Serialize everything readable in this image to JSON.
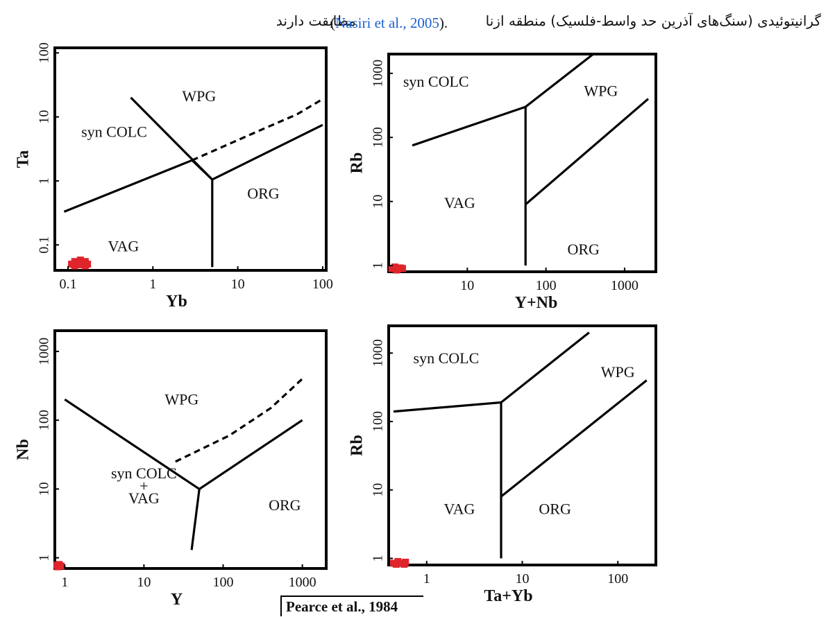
{
  "caption": {
    "right_text": "گرانیتوئیدی (سنگ‌های آذرین حد واسط-فلسیک) منطقه ازنا",
    "left_text": "مطابقت دارند",
    "citation_open": "(",
    "citation_link": "Nasiri et al., 2005",
    "citation_close": ")."
  },
  "reference": "Pearce et al., 1984",
  "chart_data": [
    {
      "type": "scatter",
      "xlabel": "Yb",
      "ylabel": "Ta",
      "log_x": true,
      "log_y": true,
      "xlim": [
        0.07,
        110
      ],
      "ylim": [
        0.04,
        120
      ],
      "x_ticks": [
        {
          "v": 0.1,
          "label": "0.1"
        },
        {
          "v": 1,
          "label": "1"
        },
        {
          "v": 10,
          "label": "10"
        },
        {
          "v": 100,
          "label": "100"
        }
      ],
      "y_ticks": [
        {
          "v": 0.1,
          "label": "0.1"
        },
        {
          "v": 1,
          "label": "1"
        },
        {
          "v": 10,
          "label": "10"
        },
        {
          "v": 100,
          "label": "100"
        }
      ],
      "y_tick_rotated": true,
      "regions": [
        {
          "label": "WPG",
          "x": 3.5,
          "y": 20
        },
        {
          "label": "syn COLC",
          "x": 0.35,
          "y": 5.5
        },
        {
          "label": "ORG",
          "x": 20,
          "y": 0.6
        },
        {
          "label": "VAG",
          "x": 0.45,
          "y": 0.09
        }
      ],
      "boundaries": [
        {
          "style": "solid",
          "points": [
            [
              0.09,
              0.33
            ],
            [
              2.9,
              2.1
            ],
            [
              5,
              1.05
            ],
            [
              100,
              7.5
            ]
          ]
        },
        {
          "style": "solid",
          "points": [
            [
              0.55,
              20
            ],
            [
              5,
              1.05
            ]
          ]
        },
        {
          "style": "solid",
          "points": [
            [
              5,
              1.05
            ],
            [
              5,
              0.045
            ]
          ]
        },
        {
          "style": "dashed",
          "points": [
            [
              2.9,
              2.1
            ],
            [
              15,
              5.5
            ],
            [
              50,
              11
            ],
            [
              100,
              19
            ]
          ]
        }
      ],
      "points": [
        [
          0.11,
          0.05
        ],
        [
          0.12,
          0.055
        ],
        [
          0.13,
          0.05
        ],
        [
          0.14,
          0.058
        ],
        [
          0.15,
          0.052
        ],
        [
          0.16,
          0.055
        ],
        [
          0.17,
          0.05
        ],
        [
          0.12,
          0.047
        ],
        [
          0.14,
          0.049
        ],
        [
          0.16,
          0.047
        ]
      ],
      "point_color": "#e0242b"
    },
    {
      "type": "scatter",
      "xlabel": "Y+Nb",
      "ylabel": "Rb",
      "log_x": true,
      "log_y": true,
      "xlim": [
        1,
        2500
      ],
      "ylim": [
        0.8,
        2000
      ],
      "x_ticks": [
        {
          "v": 10,
          "label": "10"
        },
        {
          "v": 100,
          "label": "100"
        },
        {
          "v": 1000,
          "label": "1000"
        }
      ],
      "y_ticks": [
        {
          "v": 1,
          "label": "1"
        },
        {
          "v": 10,
          "label": "10"
        },
        {
          "v": 100,
          "label": "100"
        },
        {
          "v": 1000,
          "label": "1000"
        }
      ],
      "y_tick_rotated": true,
      "regions": [
        {
          "label": "syn COLC",
          "x": 4,
          "y": 700
        },
        {
          "label": "WPG",
          "x": 500,
          "y": 500
        },
        {
          "label": "VAG",
          "x": 8,
          "y": 9
        },
        {
          "label": "ORG",
          "x": 300,
          "y": 1.7
        }
      ],
      "boundaries": [
        {
          "style": "solid",
          "points": [
            [
              2,
              75
            ],
            [
              55,
              300
            ],
            [
              400,
              2000
            ]
          ]
        },
        {
          "style": "solid",
          "points": [
            [
              55,
              300
            ],
            [
              55,
              1
            ]
          ]
        },
        {
          "style": "solid",
          "points": [
            [
              55,
              9
            ],
            [
              2000,
              400
            ]
          ]
        }
      ],
      "points": [
        [
          1.1,
          0.9
        ],
        [
          1.2,
          0.95
        ],
        [
          1.3,
          0.88
        ],
        [
          1.4,
          0.92
        ],
        [
          1.5,
          0.9
        ],
        [
          1.25,
          0.85
        ]
      ],
      "point_color": "#e0242b"
    },
    {
      "type": "scatter",
      "xlabel": "Y",
      "ylabel": "Nb",
      "log_x": true,
      "log_y": true,
      "xlim": [
        0.75,
        2000
      ],
      "ylim": [
        0.7,
        2000
      ],
      "x_ticks": [
        {
          "v": 1,
          "label": "1"
        },
        {
          "v": 10,
          "label": "10"
        },
        {
          "v": 100,
          "label": "100"
        },
        {
          "v": 1000,
          "label": "1000"
        }
      ],
      "y_ticks": [
        {
          "v": 1,
          "label": "1"
        },
        {
          "v": 10,
          "label": "10"
        },
        {
          "v": 100,
          "label": "100"
        },
        {
          "v": 1000,
          "label": "1000"
        }
      ],
      "y_tick_rotated": true,
      "regions": [
        {
          "label": "WPG",
          "x": 30,
          "y": 190
        },
        {
          "label": "syn COLC",
          "x": 10,
          "y": 16
        },
        {
          "label": "+",
          "x": 10,
          "y": 10.5
        },
        {
          "label": "VAG",
          "x": 10,
          "y": 7
        },
        {
          "label": "ORG",
          "x": 600,
          "y": 5.5
        }
      ],
      "boundaries": [
        {
          "style": "solid",
          "points": [
            [
              1,
              200
            ],
            [
              50,
              10
            ],
            [
              1000,
              100
            ]
          ]
        },
        {
          "style": "solid",
          "points": [
            [
              50,
              10
            ],
            [
              40,
              1.3
            ]
          ]
        },
        {
          "style": "dashed",
          "points": [
            [
              25,
              25
            ],
            [
              120,
              60
            ],
            [
              400,
              150
            ],
            [
              1000,
              400
            ]
          ]
        }
      ],
      "points": [
        [
          0.8,
          0.78
        ],
        [
          0.85,
          0.8
        ],
        [
          0.9,
          0.76
        ],
        [
          0.82,
          0.74
        ]
      ],
      "point_color": "#e0242b"
    },
    {
      "type": "scatter",
      "xlabel": "Ta+Yb",
      "ylabel": "Rb",
      "log_x": true,
      "log_y": true,
      "xlim": [
        0.4,
        250
      ],
      "ylim": [
        0.8,
        2500
      ],
      "x_ticks": [
        {
          "v": 1,
          "label": "1"
        },
        {
          "v": 10,
          "label": "10"
        },
        {
          "v": 100,
          "label": "100"
        }
      ],
      "y_ticks": [
        {
          "v": 1,
          "label": "1"
        },
        {
          "v": 10,
          "label": "10"
        },
        {
          "v": 100,
          "label": "100"
        },
        {
          "v": 1000,
          "label": "1000"
        }
      ],
      "y_tick_rotated": true,
      "regions": [
        {
          "label": "syn COLC",
          "x": 1.6,
          "y": 800
        },
        {
          "label": "WPG",
          "x": 100,
          "y": 500
        },
        {
          "label": "VAG",
          "x": 2.2,
          "y": 5
        },
        {
          "label": "ORG",
          "x": 22,
          "y": 5
        }
      ],
      "boundaries": [
        {
          "style": "solid",
          "points": [
            [
              0.45,
              140
            ],
            [
              6,
              190
            ],
            [
              50,
              2000
            ]
          ]
        },
        {
          "style": "solid",
          "points": [
            [
              6,
              190
            ],
            [
              6,
              1
            ]
          ]
        },
        {
          "style": "solid",
          "points": [
            [
              6,
              8
            ],
            [
              200,
              400
            ]
          ]
        }
      ],
      "points": [
        [
          0.45,
          0.85
        ],
        [
          0.5,
          0.9
        ],
        [
          0.55,
          0.85
        ],
        [
          0.6,
          0.88
        ],
        [
          0.48,
          0.82
        ],
        [
          0.58,
          0.82
        ]
      ],
      "point_color": "#e0242b"
    }
  ]
}
